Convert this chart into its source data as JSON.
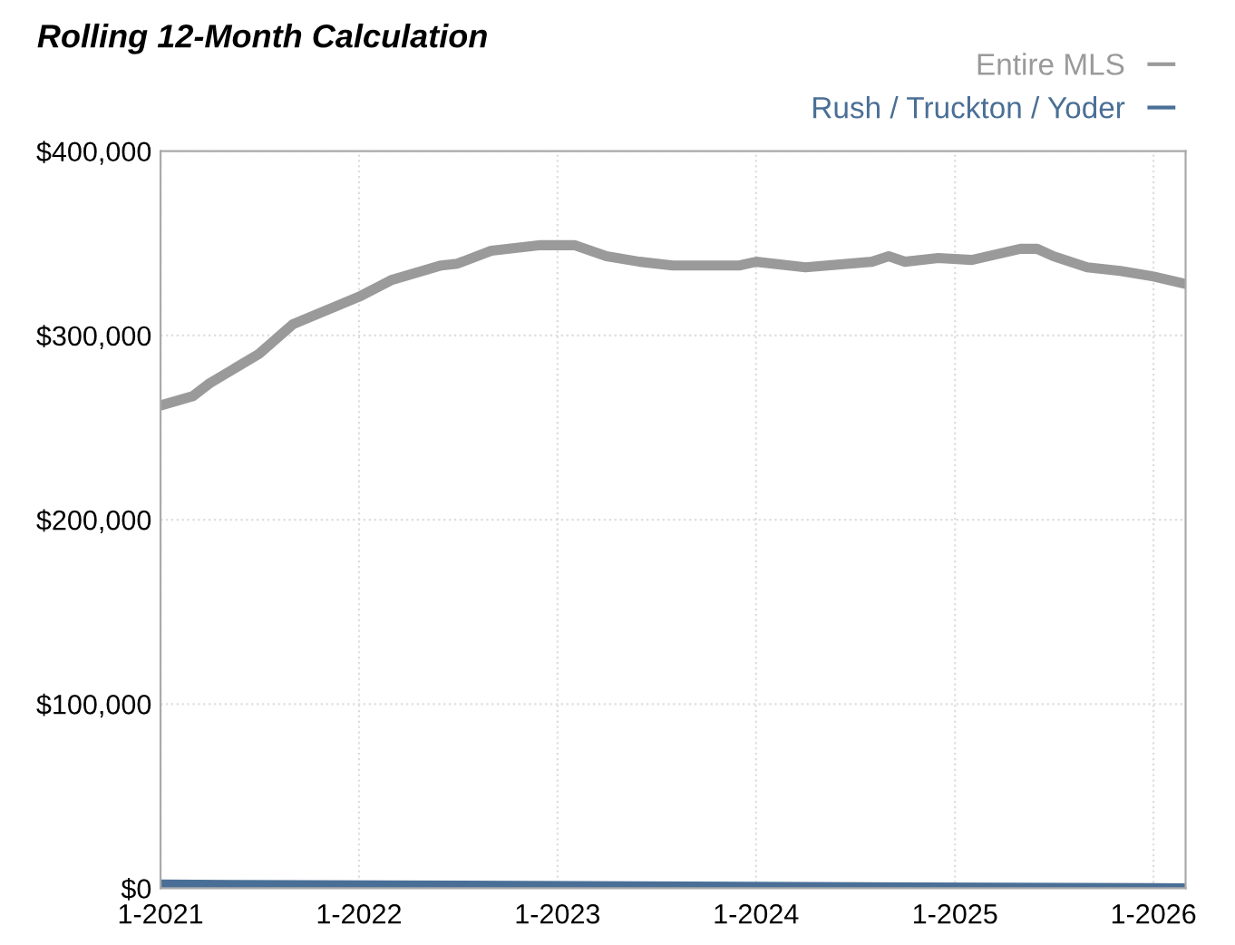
{
  "chart_data": {
    "type": "line",
    "title": "Rolling 12-Month Calculation",
    "series": [
      {
        "name": "Entire MLS",
        "color": "#9a9a9a",
        "x": [
          "2021-01",
          "2021-03",
          "2021-04",
          "2021-07",
          "2021-09",
          "2022-01",
          "2022-03",
          "2022-06",
          "2022-07",
          "2022-09",
          "2022-12",
          "2023-02",
          "2023-04",
          "2023-06",
          "2023-08",
          "2023-12",
          "2024-01",
          "2024-04",
          "2024-08",
          "2024-09",
          "2024-10",
          "2024-12",
          "2025-02",
          "2025-05",
          "2025-06",
          "2025-07",
          "2025-09",
          "2025-11",
          "2026-01",
          "2026-03"
        ],
        "values": [
          262000,
          267000,
          274000,
          290000,
          306000,
          321000,
          330000,
          338000,
          339000,
          346000,
          349000,
          349000,
          343000,
          340000,
          338000,
          338000,
          340000,
          337000,
          340000,
          343000,
          340000,
          342000,
          341000,
          347000,
          347000,
          343000,
          337000,
          335000,
          332000,
          328000
        ]
      },
      {
        "name": "Rush / Truckton / Yoder",
        "color": "#4a6f96",
        "x": [
          "2021-01",
          "2026-03"
        ],
        "values": [
          2000,
          0
        ]
      }
    ],
    "xlim": [
      "2021-01",
      "2026-03"
    ],
    "xticks": [
      {
        "value": "2021-01",
        "label": "1-2021"
      },
      {
        "value": "2022-01",
        "label": "1-2022"
      },
      {
        "value": "2023-01",
        "label": "1-2023"
      },
      {
        "value": "2024-01",
        "label": "1-2024"
      },
      {
        "value": "2025-01",
        "label": "1-2025"
      },
      {
        "value": "2026-01",
        "label": "1-2026"
      }
    ],
    "ylim": [
      0,
      400000
    ],
    "yticks": [
      {
        "value": 0,
        "label": "$0"
      },
      {
        "value": 100000,
        "label": "$100,000"
      },
      {
        "value": 200000,
        "label": "$200,000"
      },
      {
        "value": 300000,
        "label": "$300,000"
      },
      {
        "value": 400000,
        "label": "$400,000"
      }
    ],
    "grid": true,
    "legend": "top right",
    "marker": "none",
    "line_style": "solid"
  }
}
